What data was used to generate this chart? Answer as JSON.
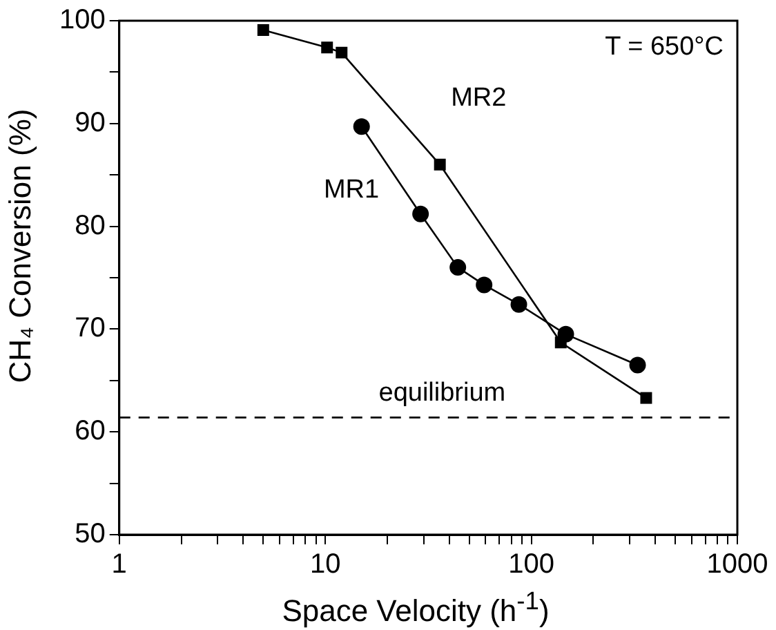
{
  "chart_data": {
    "type": "line",
    "xlabel": "Space Velocity (h$^{-1}$)",
    "ylabel": "CH₄ Conversion (%)",
    "log": "x",
    "grid": false,
    "legend": false,
    "line_style": "solid",
    "xlim": [
      1,
      1000
    ],
    "ylim": [
      50,
      100
    ],
    "xticks": [
      1,
      {
        "value": 2,
        "label": null
      },
      {
        "value": 3,
        "label": null
      },
      {
        "value": 4,
        "label": null
      },
      {
        "value": 5,
        "label": null
      },
      {
        "value": 6,
        "label": null
      },
      {
        "value": 7,
        "label": null
      },
      {
        "value": 8,
        "label": null
      },
      {
        "value": 9,
        "label": null
      },
      10,
      {
        "value": 20,
        "label": null
      },
      {
        "value": 30,
        "label": null
      },
      {
        "value": 40,
        "label": null
      },
      {
        "value": 50,
        "label": null
      },
      {
        "value": 60,
        "label": null
      },
      {
        "value": 70,
        "label": null
      },
      {
        "value": 80,
        "label": null
      },
      {
        "value": 90,
        "label": null
      },
      100,
      {
        "value": 200,
        "label": null
      },
      {
        "value": 300,
        "label": null
      },
      {
        "value": 400,
        "label": null
      },
      {
        "value": 500,
        "label": null
      },
      {
        "value": 600,
        "label": null
      },
      {
        "value": 700,
        "label": null
      },
      {
        "value": 800,
        "label": null
      },
      {
        "value": 900,
        "label": null
      },
      1000
    ],
    "yticks": [
      50,
      {
        "value": 55,
        "label": null
      },
      60,
      {
        "value": 65,
        "label": null
      },
      70,
      {
        "value": 75,
        "label": null
      },
      80,
      {
        "value": 85,
        "label": null
      },
      90,
      {
        "value": 95,
        "label": null
      },
      100
    ],
    "series": [
      {
        "name": "MR1",
        "color": "#000000",
        "marker": "circle",
        "x": [
          15,
          29,
          44,
          59,
          87,
          147,
          328
        ],
        "values": [
          89.7,
          81.2,
          76.0,
          74.3,
          72.4,
          69.5,
          66.5
        ]
      },
      {
        "name": "MR2",
        "color": "#000000",
        "marker": "square",
        "x": [
          5,
          10.2,
          12,
          36,
          139,
          361
        ],
        "values": [
          99.1,
          97.4,
          96.9,
          86.0,
          68.7,
          63.3
        ]
      }
    ],
    "ref_lines": [
      {
        "axis": "y",
        "value": 61.4,
        "label": "equilibrium",
        "color": "#000000",
        "line_style": "dashed"
      }
    ],
    "annotations": [
      "T = 650°C"
    ]
  }
}
